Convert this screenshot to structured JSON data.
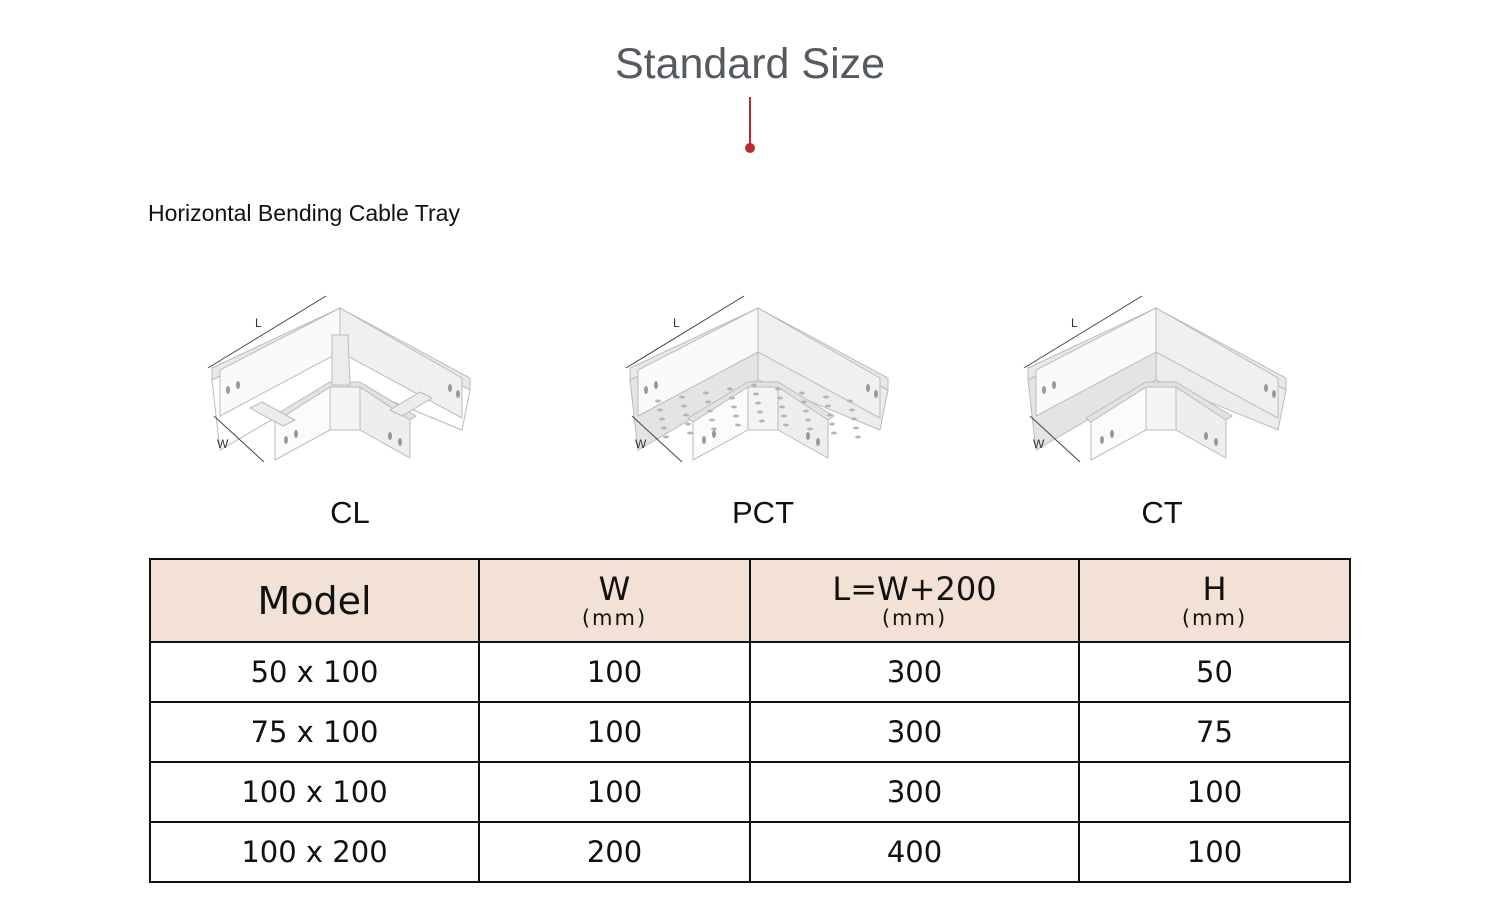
{
  "header": {
    "title": "Standard Size"
  },
  "section": {
    "subtitle": "Horizontal Bending Cable Tray"
  },
  "diagram_labels": {
    "length": "L",
    "width": "W"
  },
  "products": [
    {
      "label": "CL"
    },
    {
      "label": "PCT"
    },
    {
      "label": "CT"
    }
  ],
  "table": {
    "headers": [
      {
        "label": "Model",
        "unit": ""
      },
      {
        "label": "W",
        "unit": "(mm)"
      },
      {
        "label": "L=W+200",
        "unit": "(mm)"
      },
      {
        "label": "H",
        "unit": "(mm)"
      }
    ],
    "rows": [
      [
        "50 x 100",
        "100",
        "300",
        "50"
      ],
      [
        "75 x 100",
        "100",
        "300",
        "75"
      ],
      [
        "100 x 100",
        "100",
        "300",
        "100"
      ],
      [
        "100 x 200",
        "200",
        "400",
        "100"
      ]
    ]
  },
  "colors": {
    "accent": "#c0272d",
    "header_bg": "#f3e1d6",
    "title": "#555a61"
  }
}
